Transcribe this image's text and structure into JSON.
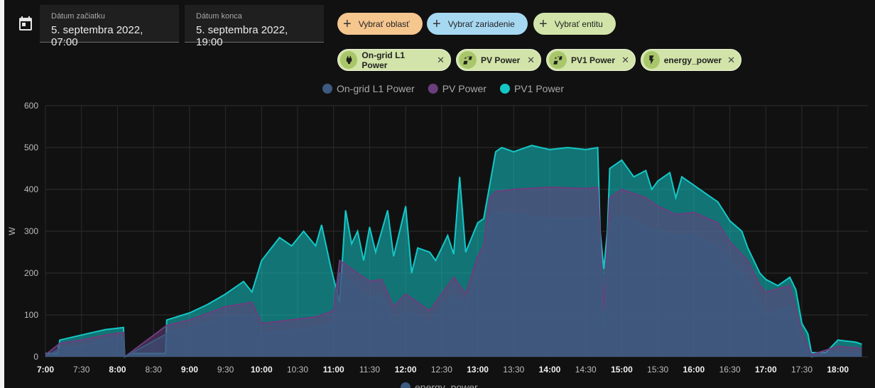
{
  "date_start": {
    "label": "Dátum začiatku",
    "value": "5. septembra 2022, 07:00"
  },
  "date_end": {
    "label": "Dátum konca",
    "value": "5. septembra 2022, 19:00"
  },
  "target_buttons": [
    {
      "label": "Vybrať oblasť",
      "color": "#f6c68f"
    },
    {
      "label": "Vybrať zariadenie",
      "color": "#a7d8f2"
    },
    {
      "label": "Vybrať entitu",
      "color": "#d2e4a9"
    }
  ],
  "entity_chips": [
    {
      "label": "On-grid L1 Power",
      "icon": "power-plug-icon"
    },
    {
      "label": "PV Power",
      "icon": "solar-power-icon"
    },
    {
      "label": "PV1 Power",
      "icon": "solar-power-icon"
    },
    {
      "label": "energy_power",
      "icon": "flash-icon"
    }
  ],
  "colors": {
    "background": "#111111",
    "chip_green": "#d2e4a9",
    "on_grid": "#3d5a80",
    "pv": "#6b3e7f",
    "pv1": "#14c7c7"
  },
  "chart_data": {
    "type": "line",
    "title": "",
    "ylabel": "W",
    "ylim": [
      0,
      600
    ],
    "yticks": [
      0,
      100,
      200,
      300,
      400,
      500,
      600
    ],
    "xlim": [
      "7:00",
      "18:25"
    ],
    "xticks": [
      {
        "label": "7:00",
        "bold": true
      },
      {
        "label": "7:30",
        "bold": false
      },
      {
        "label": "8:00",
        "bold": true
      },
      {
        "label": "8:30",
        "bold": false
      },
      {
        "label": "9:00",
        "bold": true
      },
      {
        "label": "9:30",
        "bold": false
      },
      {
        "label": "10:00",
        "bold": true
      },
      {
        "label": "10:30",
        "bold": false
      },
      {
        "label": "11:00",
        "bold": true
      },
      {
        "label": "11:30",
        "bold": false
      },
      {
        "label": "12:00",
        "bold": true
      },
      {
        "label": "12:30",
        "bold": false
      },
      {
        "label": "13:00",
        "bold": true
      },
      {
        "label": "13:30",
        "bold": false
      },
      {
        "label": "14:00",
        "bold": true
      },
      {
        "label": "14:30",
        "bold": false
      },
      {
        "label": "15:00",
        "bold": true
      },
      {
        "label": "15:30",
        "bold": false
      },
      {
        "label": "16:00",
        "bold": true
      },
      {
        "label": "16:30",
        "bold": false
      },
      {
        "label": "17:00",
        "bold": true
      },
      {
        "label": "17:30",
        "bold": false
      },
      {
        "label": "18:00",
        "bold": true
      }
    ],
    "grid": true,
    "legend_top": [
      {
        "name": "On-grid L1 Power",
        "color": "#3d5a80"
      },
      {
        "name": "PV Power",
        "color": "#6b3e7f"
      },
      {
        "name": "PV1 Power",
        "color": "#14c7c7"
      }
    ],
    "legend_bottom": [
      {
        "name": "energy_power",
        "color": "#3d5a80"
      }
    ],
    "series": [
      {
        "name": "PV1 Power",
        "color": "#14c7c7",
        "points": [
          [
            "7:00",
            8
          ],
          [
            "7:10",
            8
          ],
          [
            "7:12",
            40
          ],
          [
            "7:30",
            52
          ],
          [
            "7:50",
            65
          ],
          [
            "8:05",
            70
          ],
          [
            "8:06",
            0
          ],
          [
            "8:12",
            8
          ],
          [
            "8:40",
            8
          ],
          [
            "8:41",
            88
          ],
          [
            "9:00",
            105
          ],
          [
            "9:15",
            125
          ],
          [
            "9:30",
            150
          ],
          [
            "9:45",
            180
          ],
          [
            "9:52",
            155
          ],
          [
            "10:00",
            230
          ],
          [
            "10:15",
            285
          ],
          [
            "10:25",
            265
          ],
          [
            "10:35",
            300
          ],
          [
            "10:45",
            265
          ],
          [
            "10:50",
            315
          ],
          [
            "10:58",
            210
          ],
          [
            "11:05",
            130
          ],
          [
            "11:10",
            350
          ],
          [
            "11:15",
            270
          ],
          [
            "11:20",
            300
          ],
          [
            "11:25",
            230
          ],
          [
            "11:30",
            310
          ],
          [
            "11:35",
            250
          ],
          [
            "11:45",
            350
          ],
          [
            "11:50",
            240
          ],
          [
            "12:00",
            360
          ],
          [
            "12:05",
            200
          ],
          [
            "12:10",
            260
          ],
          [
            "12:20",
            250
          ],
          [
            "12:25",
            230
          ],
          [
            "12:30",
            260
          ],
          [
            "12:35",
            290
          ],
          [
            "12:40",
            245
          ],
          [
            "12:45",
            430
          ],
          [
            "12:50",
            250
          ],
          [
            "13:00",
            320
          ],
          [
            "13:05",
            330
          ],
          [
            "13:10",
            410
          ],
          [
            "13:15",
            490
          ],
          [
            "13:20",
            500
          ],
          [
            "13:30",
            490
          ],
          [
            "13:45",
            505
          ],
          [
            "14:00",
            495
          ],
          [
            "14:15",
            500
          ],
          [
            "14:30",
            495
          ],
          [
            "14:40",
            500
          ],
          [
            "14:42",
            300
          ],
          [
            "14:45",
            210
          ],
          [
            "14:48",
            300
          ],
          [
            "14:50",
            450
          ],
          [
            "15:00",
            470
          ],
          [
            "15:10",
            430
          ],
          [
            "15:20",
            445
          ],
          [
            "15:25",
            400
          ],
          [
            "15:30",
            420
          ],
          [
            "15:40",
            440
          ],
          [
            "15:45",
            380
          ],
          [
            "15:50",
            430
          ],
          [
            "16:00",
            410
          ],
          [
            "16:10",
            390
          ],
          [
            "16:20",
            370
          ],
          [
            "16:30",
            325
          ],
          [
            "16:40",
            300
          ],
          [
            "16:45",
            260
          ],
          [
            "16:55",
            200
          ],
          [
            "17:00",
            185
          ],
          [
            "17:10",
            170
          ],
          [
            "17:20",
            190
          ],
          [
            "17:25",
            160
          ],
          [
            "17:30",
            80
          ],
          [
            "17:35",
            55
          ],
          [
            "17:38",
            10
          ],
          [
            "17:50",
            10
          ],
          [
            "18:00",
            40
          ],
          [
            "18:15",
            35
          ],
          [
            "18:20",
            30
          ]
        ]
      },
      {
        "name": "PV Power",
        "color": "#6b3e7f",
        "points": [
          [
            "7:00",
            5
          ],
          [
            "7:12",
            32
          ],
          [
            "7:30",
            40
          ],
          [
            "7:50",
            52
          ],
          [
            "8:05",
            58
          ],
          [
            "8:06",
            0
          ],
          [
            "8:41",
            75
          ],
          [
            "9:00",
            88
          ],
          [
            "9:30",
            120
          ],
          [
            "9:52",
            130
          ],
          [
            "10:00",
            80
          ],
          [
            "10:15",
            85
          ],
          [
            "10:30",
            90
          ],
          [
            "10:45",
            95
          ],
          [
            "11:00",
            110
          ],
          [
            "11:05",
            230
          ],
          [
            "11:30",
            180
          ],
          [
            "11:40",
            185
          ],
          [
            "11:50",
            120
          ],
          [
            "12:00",
            150
          ],
          [
            "12:20",
            110
          ],
          [
            "12:40",
            190
          ],
          [
            "12:50",
            150
          ],
          [
            "13:00",
            240
          ],
          [
            "13:05",
            265
          ],
          [
            "13:10",
            380
          ],
          [
            "13:15",
            395
          ],
          [
            "13:30",
            400
          ],
          [
            "14:00",
            405
          ],
          [
            "14:30",
            402
          ],
          [
            "14:40",
            405
          ],
          [
            "14:45",
            110
          ],
          [
            "14:50",
            380
          ],
          [
            "15:00",
            400
          ],
          [
            "15:20",
            380
          ],
          [
            "15:30",
            360
          ],
          [
            "15:45",
            340
          ],
          [
            "16:00",
            345
          ],
          [
            "16:20",
            320
          ],
          [
            "16:30",
            275
          ],
          [
            "16:45",
            230
          ],
          [
            "16:55",
            170
          ],
          [
            "17:00",
            155
          ],
          [
            "17:20",
            170
          ],
          [
            "17:30",
            60
          ],
          [
            "17:38",
            5
          ],
          [
            "18:00",
            25
          ],
          [
            "18:20",
            20
          ]
        ]
      },
      {
        "name": "On-grid L1 Power",
        "color": "#3d5a80",
        "points": [
          [
            "7:00",
            0
          ],
          [
            "7:12",
            20
          ],
          [
            "7:30",
            25
          ],
          [
            "7:50",
            40
          ],
          [
            "8:05",
            45
          ],
          [
            "8:06",
            0
          ],
          [
            "8:41",
            55
          ],
          [
            "9:00",
            70
          ],
          [
            "9:30",
            95
          ],
          [
            "9:52",
            100
          ],
          [
            "10:00",
            55
          ],
          [
            "10:15",
            60
          ],
          [
            "10:30",
            65
          ],
          [
            "10:45",
            70
          ],
          [
            "11:00",
            75
          ],
          [
            "11:05",
            200
          ],
          [
            "11:30",
            140
          ],
          [
            "11:40",
            150
          ],
          [
            "11:50",
            80
          ],
          [
            "12:00",
            110
          ],
          [
            "12:20",
            80
          ],
          [
            "12:40",
            150
          ],
          [
            "12:50",
            120
          ],
          [
            "13:00",
            205
          ],
          [
            "13:05",
            235
          ],
          [
            "13:10",
            330
          ],
          [
            "13:15",
            345
          ],
          [
            "13:30",
            340
          ],
          [
            "14:00",
            330
          ],
          [
            "14:30",
            330
          ],
          [
            "14:40",
            335
          ],
          [
            "14:45",
            60
          ],
          [
            "14:50",
            320
          ],
          [
            "15:00",
            340
          ],
          [
            "15:20",
            310
          ],
          [
            "15:30",
            300
          ],
          [
            "15:45",
            290
          ],
          [
            "16:00",
            290
          ],
          [
            "16:20",
            260
          ],
          [
            "16:30",
            230
          ],
          [
            "16:45",
            180
          ],
          [
            "16:55",
            120
          ],
          [
            "17:00",
            100
          ],
          [
            "17:20",
            120
          ],
          [
            "17:30",
            30
          ],
          [
            "17:38",
            0
          ],
          [
            "18:00",
            10
          ],
          [
            "18:20",
            5
          ]
        ]
      }
    ]
  }
}
